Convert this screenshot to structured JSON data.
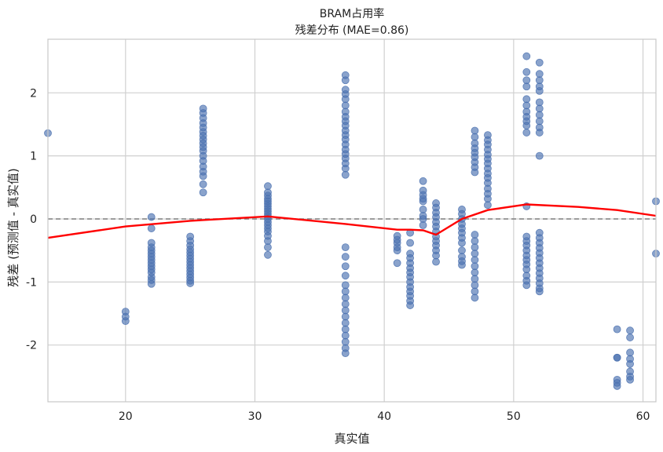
{
  "chart_data": {
    "type": "scatter",
    "title": "BRAM占用率",
    "subtitle": "残差分布 (MAE=0.86)",
    "xlabel": "真实值",
    "ylabel": "残差 (预测值 - 真实值)",
    "xlim": [
      14,
      61
    ],
    "ylim": [
      -2.9,
      2.85
    ],
    "xticks": [
      20,
      30,
      40,
      50,
      60
    ],
    "yticks": [
      -2,
      -1,
      0,
      1,
      2
    ],
    "grid": true,
    "reference_line": {
      "y": 0,
      "style": "dashed",
      "color": "#808080"
    },
    "colors": {
      "points": "#4c72b0",
      "trend": "#ff0000",
      "grid": "#d0d0d0",
      "frame": "#c8c8c8"
    },
    "point_groups": [
      {
        "x": 14,
        "y": [
          1.36
        ]
      },
      {
        "x": 20,
        "y": [
          -1.47,
          -1.55,
          -1.62
        ]
      },
      {
        "x": 22,
        "y": [
          0.03,
          -0.15,
          -0.38,
          -0.45,
          -0.5,
          -0.55,
          -0.6,
          -0.65,
          -0.7,
          -0.75,
          -0.8,
          -0.85,
          -0.92,
          -0.97,
          -1.03
        ]
      },
      {
        "x": 25,
        "y": [
          -0.28,
          -0.35,
          -0.42,
          -0.48,
          -0.53,
          -0.58,
          -0.63,
          -0.68,
          -0.73,
          -0.78,
          -0.83,
          -0.88,
          -0.93,
          -0.98,
          -1.02
        ]
      },
      {
        "x": 26,
        "y": [
          1.75,
          1.68,
          1.6,
          1.52,
          1.45,
          1.38,
          1.32,
          1.26,
          1.2,
          1.14,
          1.08,
          1.0,
          0.92,
          0.83,
          0.75,
          0.68,
          0.55,
          0.42
        ]
      },
      {
        "x": 31,
        "y": [
          0.52,
          0.42,
          0.37,
          0.32,
          0.28,
          0.24,
          0.2,
          0.16,
          0.12,
          0.08,
          0.04,
          0.0,
          -0.05,
          -0.1,
          -0.15,
          -0.2,
          -0.27,
          -0.35,
          -0.45,
          -0.57
        ]
      },
      {
        "x": 37,
        "y": [
          2.28,
          2.2,
          2.05,
          1.98,
          1.9,
          1.8,
          1.7,
          1.62,
          1.55,
          1.48,
          1.4,
          1.33,
          1.26,
          1.18,
          1.1,
          1.03,
          0.96,
          0.88,
          0.8,
          0.7,
          -0.45,
          -0.6,
          -0.75,
          -0.9,
          -1.05,
          -1.15,
          -1.25,
          -1.35,
          -1.45,
          -1.55,
          -1.65,
          -1.75,
          -1.85,
          -1.95,
          -2.05,
          -2.13
        ]
      },
      {
        "x": 41,
        "y": [
          -0.27,
          -0.33,
          -0.38,
          -0.45,
          -0.5,
          -0.7
        ]
      },
      {
        "x": 42,
        "y": [
          -0.22,
          -0.38,
          -0.55,
          -0.62,
          -0.7,
          -0.78,
          -0.85,
          -0.92,
          -1.0,
          -1.08,
          -1.15,
          -1.22,
          -1.3,
          -1.37
        ]
      },
      {
        "x": 43,
        "y": [
          0.6,
          0.45,
          0.38,
          0.32,
          0.28,
          0.15,
          0.05,
          0.0,
          -0.1
        ]
      },
      {
        "x": 44,
        "y": [
          0.25,
          0.18,
          0.1,
          0.03,
          -0.05,
          -0.12,
          -0.2,
          -0.28,
          -0.35,
          -0.42,
          -0.5,
          -0.58,
          -0.68
        ]
      },
      {
        "x": 46,
        "y": [
          0.15,
          0.08,
          0.0,
          -0.08,
          -0.15,
          -0.22,
          -0.3,
          -0.38,
          -0.5,
          -0.6,
          -0.67,
          -0.73
        ]
      },
      {
        "x": 47,
        "y": [
          1.4,
          1.3,
          1.2,
          1.12,
          1.05,
          0.98,
          0.9,
          0.82,
          0.74,
          -0.25,
          -0.35,
          -0.45,
          -0.55,
          -0.65,
          -0.75,
          -0.85,
          -0.95,
          -1.05,
          -1.15,
          -1.25
        ]
      },
      {
        "x": 48,
        "y": [
          1.33,
          1.25,
          1.18,
          1.1,
          1.02,
          0.95,
          0.88,
          0.8,
          0.72,
          0.65,
          0.57,
          0.48,
          0.4,
          0.32,
          0.22
        ]
      },
      {
        "x": 51,
        "y": [
          2.58,
          2.33,
          2.2,
          2.1,
          1.9,
          1.8,
          1.7,
          1.62,
          1.55,
          1.48,
          1.37,
          0.2,
          -0.28,
          -0.35,
          -0.42,
          -0.5,
          -0.58,
          -0.65,
          -0.72,
          -0.8,
          -0.9,
          -0.98,
          -1.05
        ]
      },
      {
        "x": 52,
        "y": [
          2.48,
          2.3,
          2.2,
          2.1,
          2.03,
          1.85,
          1.75,
          1.65,
          1.55,
          1.45,
          1.37,
          1.0,
          -0.22,
          -0.3,
          -0.38,
          -0.46,
          -0.54,
          -0.62,
          -0.7,
          -0.78,
          -0.86,
          -0.94,
          -1.02,
          -1.1,
          -1.15
        ]
      },
      {
        "x": 58,
        "y": [
          -1.75,
          -2.2,
          -2.2,
          -2.55,
          -2.6,
          -2.65
        ]
      },
      {
        "x": 59,
        "y": [
          -1.77,
          -1.88,
          -2.12,
          -2.22,
          -2.3,
          -2.42,
          -2.5,
          -2.55
        ]
      },
      {
        "x": 61,
        "y": [
          0.28,
          -0.55
        ]
      }
    ],
    "trend_line": {
      "x": [
        14,
        20,
        25,
        31,
        37,
        41,
        42,
        43,
        44,
        46,
        48,
        51,
        55,
        58,
        61
      ],
      "y": [
        -0.3,
        -0.12,
        -0.03,
        0.04,
        -0.08,
        -0.17,
        -0.17,
        -0.18,
        -0.25,
        0.0,
        0.14,
        0.23,
        0.19,
        0.14,
        0.05
      ]
    }
  }
}
